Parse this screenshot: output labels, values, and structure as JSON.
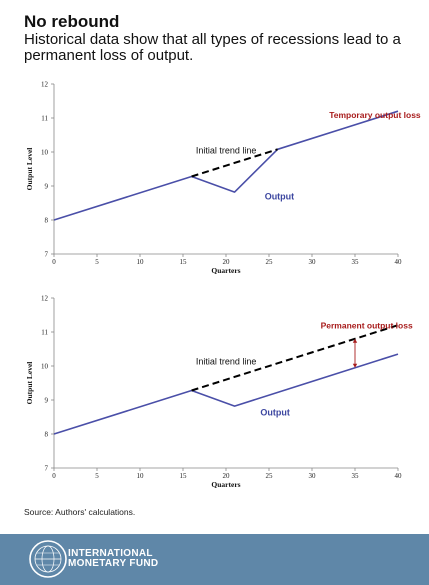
{
  "header": {
    "title": "No rebound",
    "subtitle": "Historical data show that all types of recessions lead to a permanent loss of output."
  },
  "colors": {
    "output_line": "#4a4fa8",
    "trend_line": "#000000",
    "annotation_red": "#a81c1c",
    "output_label": "#3c46a0",
    "footer_bg": "#5f87a8"
  },
  "chart_data": [
    {
      "type": "line",
      "xlabel": "Quarters",
      "ylabel": "Output Level",
      "xlim": [
        0,
        40
      ],
      "ylim": [
        7,
        12
      ],
      "x_ticks": [
        0,
        5,
        10,
        15,
        20,
        25,
        30,
        35,
        40
      ],
      "y_ticks": [
        7,
        8,
        9,
        10,
        11,
        12
      ],
      "grid": false,
      "series": [
        {
          "name": "Output",
          "style": "solid",
          "x": [
            0,
            16,
            21,
            26,
            40
          ],
          "y": [
            8.0,
            9.28,
            8.82,
            10.08,
            11.2
          ]
        },
        {
          "name": "Initial trend line",
          "style": "dashed",
          "x": [
            16,
            26
          ],
          "y": [
            9.28,
            10.08
          ]
        }
      ],
      "annotations": [
        {
          "text": "Temporary output loss",
          "color": "red",
          "x": 32,
          "y": 11.0
        },
        {
          "text": "Initial trend line",
          "color": "black",
          "x": 16.5,
          "y": 9.95
        },
        {
          "text": "Output",
          "color": "blue",
          "x": 24.5,
          "y": 8.6
        }
      ]
    },
    {
      "type": "line",
      "xlabel": "Quarters",
      "ylabel": "Output Level",
      "xlim": [
        0,
        40
      ],
      "ylim": [
        7,
        12
      ],
      "x_ticks": [
        0,
        5,
        10,
        15,
        20,
        25,
        30,
        35,
        40
      ],
      "y_ticks": [
        7,
        8,
        9,
        10,
        11,
        12
      ],
      "grid": false,
      "series": [
        {
          "name": "Output",
          "style": "solid",
          "x": [
            0,
            16,
            21,
            40
          ],
          "y": [
            8.0,
            9.28,
            8.82,
            10.35
          ]
        },
        {
          "name": "Initial trend line",
          "style": "dashed",
          "x": [
            16,
            40
          ],
          "y": [
            9.28,
            11.2
          ]
        }
      ],
      "gap_arrow": {
        "x": 35,
        "y_from": 9.95,
        "y_to": 10.8
      },
      "annotations": [
        {
          "text": "Permanent output loss",
          "color": "red",
          "x": 31,
          "y": 11.1
        },
        {
          "text": "Initial trend line",
          "color": "black",
          "x": 16.5,
          "y": 10.05
        },
        {
          "text": "Output",
          "color": "blue",
          "x": 24,
          "y": 8.55
        }
      ]
    }
  ],
  "footer": {
    "source": "Source: Authors' calculations.",
    "org_line1": "INTERNATIONAL",
    "org_line2": "MONETARY FUND"
  }
}
